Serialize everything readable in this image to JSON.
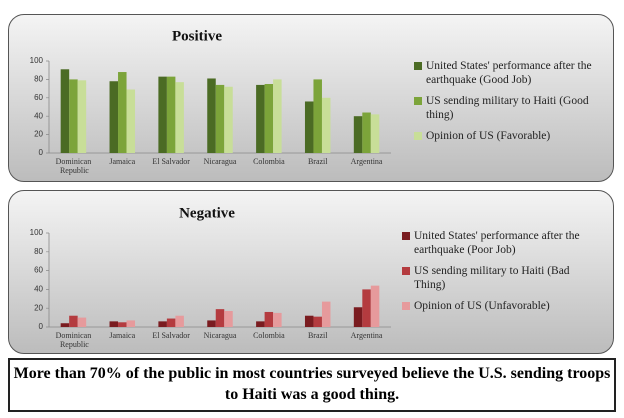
{
  "chart_data": [
    {
      "type": "bar",
      "title": "Positive",
      "categories": [
        "Dominican Republic",
        "Jamaica",
        "El Salvador",
        "Nicaragua",
        "Colombia",
        "Brazil",
        "Argentina"
      ],
      "series": [
        {
          "name": "United States' performance after the earthquake (Good Job)",
          "color": "#4b6b24",
          "values": [
            91,
            78,
            83,
            81,
            74,
            56,
            40
          ]
        },
        {
          "name": "US sending military to Haiti (Good thing)",
          "color": "#7ca43a",
          "values": [
            80,
            88,
            83,
            74,
            75,
            80,
            44
          ]
        },
        {
          "name": "Opinion of US (Favorable)",
          "color": "#c8de98",
          "values": [
            79,
            69,
            77,
            72,
            80,
            60,
            42
          ]
        }
      ],
      "ylim": [
        0,
        100
      ],
      "yticks": [
        0,
        20,
        40,
        60,
        80,
        100
      ],
      "grid": false
    },
    {
      "type": "bar",
      "title": "Negative",
      "categories": [
        "Dominican Republic",
        "Jamaica",
        "El Salvador",
        "Nicaragua",
        "Colombia",
        "Brazil",
        "Argentina"
      ],
      "series": [
        {
          "name": "United States' performance after the earthquake (Poor Job)",
          "color": "#7a1c20",
          "values": [
            4,
            6,
            6,
            7,
            6,
            12,
            21
          ]
        },
        {
          "name": "US sending military to Haiti (Bad Thing)",
          "color": "#b43b3f",
          "values": [
            12,
            5,
            9,
            19,
            16,
            11,
            40
          ]
        },
        {
          "name": "Opinion of US (Unfavorable)",
          "color": "#e69a9c",
          "values": [
            10,
            7,
            12,
            17,
            15,
            27,
            44
          ]
        }
      ],
      "ylim": [
        0,
        100
      ],
      "yticks": [
        0,
        20,
        40,
        60,
        80,
        100
      ],
      "grid": false
    }
  ],
  "caption": "More than 70% of the public in most countries surveyed believe the U.S. sending troops to Haiti was a good thing."
}
